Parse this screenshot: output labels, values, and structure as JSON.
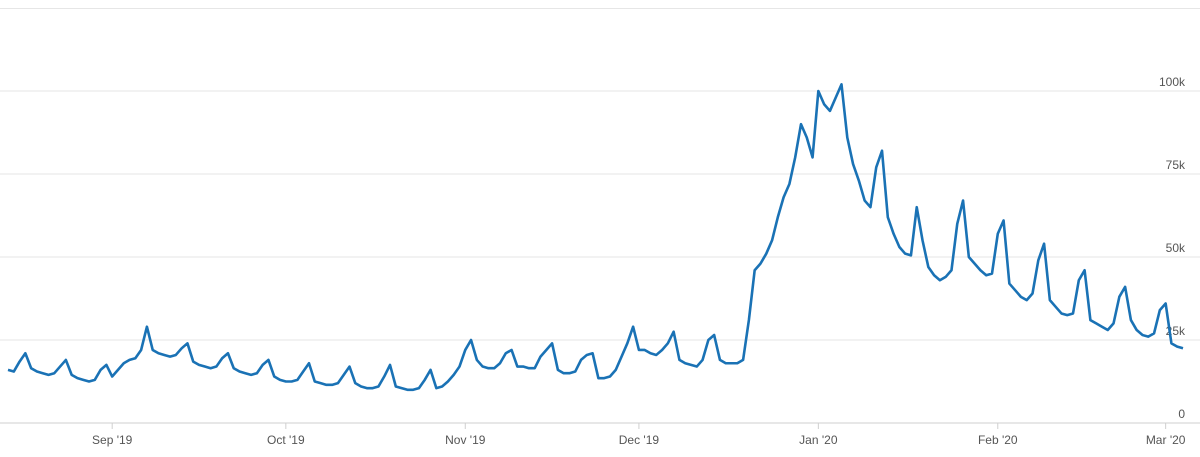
{
  "chart_data": {
    "type": "line",
    "categories": [
      null,
      null,
      null,
      null,
      null,
      null,
      null,
      null,
      null,
      null,
      null,
      null,
      null,
      null,
      null,
      null,
      null,
      null,
      "Sep '19",
      null,
      null,
      null,
      null,
      null,
      null,
      null,
      null,
      null,
      null,
      null,
      null,
      null,
      null,
      null,
      null,
      null,
      null,
      null,
      null,
      null,
      null,
      null,
      null,
      null,
      null,
      null,
      null,
      null,
      "Oct '19",
      null,
      null,
      null,
      null,
      null,
      null,
      null,
      null,
      null,
      null,
      null,
      null,
      null,
      null,
      null,
      null,
      null,
      null,
      null,
      null,
      null,
      null,
      null,
      null,
      null,
      null,
      null,
      null,
      null,
      null,
      "Nov '19",
      null,
      null,
      null,
      null,
      null,
      null,
      null,
      null,
      null,
      null,
      null,
      null,
      null,
      null,
      null,
      null,
      null,
      null,
      null,
      null,
      null,
      null,
      null,
      null,
      null,
      null,
      null,
      null,
      null,
      "Dec '19",
      null,
      null,
      null,
      null,
      null,
      null,
      null,
      null,
      null,
      null,
      null,
      null,
      null,
      null,
      null,
      null,
      null,
      null,
      null,
      null,
      null,
      null,
      null,
      null,
      null,
      null,
      null,
      null,
      null,
      null,
      "Jan '20",
      null,
      null,
      null,
      null,
      null,
      null,
      null,
      null,
      null,
      null,
      null,
      null,
      null,
      null,
      null,
      null,
      null,
      null,
      null,
      null,
      null,
      null,
      null,
      null,
      null,
      null,
      null,
      null,
      null,
      null,
      "Feb '20",
      null,
      null,
      null,
      null,
      null,
      null,
      null,
      null,
      null,
      null,
      null,
      null,
      null,
      null,
      null,
      null,
      null,
      null,
      null,
      null,
      null,
      null,
      null,
      null,
      null,
      null,
      null,
      null,
      "Mar '20",
      null,
      null,
      null
    ],
    "values": [
      16000,
      15500,
      18500,
      21000,
      16500,
      15500,
      15000,
      14500,
      15000,
      17000,
      19000,
      14500,
      13500,
      13000,
      12500,
      13000,
      16000,
      17500,
      14000,
      16000,
      18000,
      19000,
      19500,
      22000,
      29000,
      22000,
      21000,
      20500,
      20000,
      20500,
      22500,
      24000,
      18500,
      17500,
      17000,
      16500,
      17000,
      19500,
      21000,
      16500,
      15500,
      15000,
      14500,
      15000,
      17500,
      19000,
      14000,
      13000,
      12500,
      12500,
      13000,
      15500,
      18000,
      12500,
      12000,
      11500,
      11500,
      12000,
      14500,
      17000,
      12000,
      11000,
      10500,
      10500,
      11000,
      14000,
      17500,
      11000,
      10500,
      10000,
      10000,
      10500,
      13000,
      16000,
      10500,
      11000,
      12500,
      14500,
      17000,
      22000,
      25000,
      19000,
      17000,
      16500,
      16500,
      18000,
      21000,
      22000,
      17000,
      17000,
      16500,
      16500,
      20000,
      22000,
      24000,
      16000,
      15000,
      15000,
      15500,
      19000,
      20500,
      21000,
      13500,
      13500,
      14000,
      16000,
      20000,
      24000,
      29000,
      22000,
      22000,
      21000,
      20500,
      22000,
      24000,
      27500,
      19000,
      18000,
      17500,
      17000,
      19000,
      25000,
      26500,
      19000,
      18000,
      18000,
      18000,
      19000,
      31000,
      46000,
      48000,
      51000,
      55000,
      62000,
      68000,
      72000,
      80000,
      90000,
      86000,
      80000,
      100000,
      96000,
      94000,
      98000,
      102000,
      86000,
      78000,
      73000,
      67000,
      65000,
      77000,
      82000,
      62000,
      57000,
      53000,
      51000,
      50500,
      65000,
      55000,
      47000,
      44500,
      43000,
      44000,
      46000,
      60000,
      67000,
      50000,
      48000,
      46000,
      44500,
      45000,
      57000,
      61000,
      42000,
      40000,
      38000,
      37000,
      39000,
      49000,
      54000,
      37000,
      35000,
      33000,
      32500,
      33000,
      43000,
      46000,
      31000,
      30000,
      29000,
      28000,
      30000,
      38000,
      41000,
      31000,
      28000,
      26500,
      26000,
      27000,
      34000,
      36000,
      24000,
      23000,
      22500
    ],
    "color": "#1a72b5",
    "ylim": [
      0,
      125000
    ],
    "yticks": [
      0,
      {
        "value": 25000,
        "label": "25k"
      },
      {
        "value": 50000,
        "label": "50k"
      },
      {
        "value": 75000,
        "label": "75k"
      },
      {
        "value": 100000,
        "label": "100k"
      }
    ],
    "grid": true
  }
}
